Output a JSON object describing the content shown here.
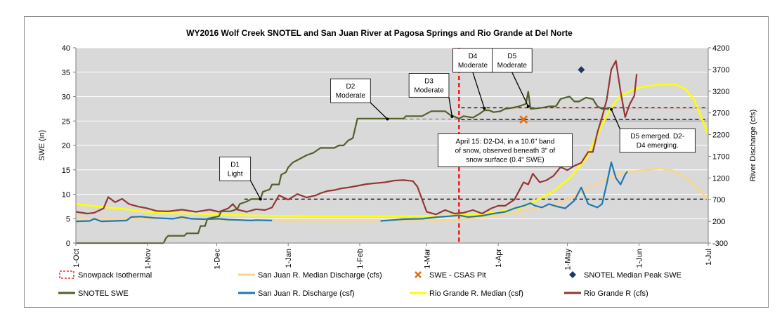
{
  "chart_data": {
    "type": "line",
    "title": "WY2016 Wolf Creek SNOTEL and San Juan River at Pagosa Springs and Rio Grande at Del Norte",
    "ylabel": "SWE (in)",
    "y2label": "River Discharge (cfs)",
    "ylim": [
      0,
      40
    ],
    "y2lim": [
      -300,
      4200
    ],
    "yticks": [
      "0",
      "5",
      "10",
      "15",
      "20",
      "25",
      "30",
      "35",
      "40"
    ],
    "y2ticks": [
      "-300",
      "200",
      "700",
      "1200",
      "1700",
      "2200",
      "2700",
      "3200",
      "3700",
      "4200"
    ],
    "xtick_labels": [
      "1-Oct",
      "1-Nov",
      "1-Dec",
      "1-Jan",
      "1-Feb",
      "1-Mar",
      "1-Apr",
      "1-May",
      "1-Jun",
      "1-Jul"
    ],
    "xtick_days": [
      0,
      31,
      61,
      92,
      123,
      152,
      183,
      213,
      244,
      274
    ],
    "grid": true,
    "colors": {
      "plot_bg": "#d9d9d9",
      "snotel": "#4f6228",
      "sj_median": "#fad68a",
      "sj_discharge": "#1f77b4",
      "rg_median": "#ffff00",
      "rg_discharge": "#943634",
      "isothermal": "#ff0000",
      "csas": "#e46c0a",
      "median_peak": "#1f3864"
    },
    "series": [
      {
        "name": "SNOTEL SWE",
        "axis": "left",
        "points": [
          [
            0,
            0
          ],
          [
            38,
            0
          ],
          [
            39,
            1
          ],
          [
            40,
            1.5
          ],
          [
            47,
            1.5
          ],
          [
            48,
            2
          ],
          [
            53,
            2
          ],
          [
            54,
            3.5
          ],
          [
            56,
            3.5
          ],
          [
            57,
            5
          ],
          [
            62,
            5.5
          ],
          [
            63,
            6.5
          ],
          [
            67,
            6.5
          ],
          [
            70,
            7
          ],
          [
            71,
            8
          ],
          [
            74,
            8.5
          ],
          [
            76,
            9
          ],
          [
            80,
            9
          ],
          [
            81,
            10.5
          ],
          [
            84,
            11
          ],
          [
            85,
            12
          ],
          [
            88,
            12
          ],
          [
            89,
            14
          ],
          [
            91,
            14.5
          ],
          [
            92,
            15.5
          ],
          [
            94,
            16.5
          ],
          [
            96,
            17
          ],
          [
            98,
            17.5
          ],
          [
            100,
            18
          ],
          [
            103,
            18.5
          ],
          [
            106,
            19.5
          ],
          [
            112,
            19.5
          ],
          [
            114,
            20
          ],
          [
            116,
            20
          ],
          [
            118,
            21
          ],
          [
            120,
            21.5
          ],
          [
            122,
            25.5
          ],
          [
            138,
            25.5
          ],
          [
            142,
            25.5
          ],
          [
            143,
            26
          ],
          [
            150,
            26
          ],
          [
            154,
            27
          ],
          [
            160,
            27
          ],
          [
            162,
            26.3
          ],
          [
            166,
            25.5
          ],
          [
            168,
            26
          ],
          [
            172,
            25.7
          ],
          [
            175,
            26.5
          ],
          [
            177,
            27.2
          ],
          [
            179,
            27.2
          ],
          [
            181,
            26.8
          ],
          [
            184,
            27
          ],
          [
            186,
            27.5
          ],
          [
            189,
            27.7
          ],
          [
            192,
            28
          ],
          [
            195,
            28.5
          ],
          [
            196,
            31
          ],
          [
            197,
            27.5
          ],
          [
            200,
            27.6
          ],
          [
            203,
            27.8
          ],
          [
            205,
            28
          ],
          [
            208,
            28
          ],
          [
            210,
            29.5
          ],
          [
            212,
            29.8
          ],
          [
            214,
            30
          ],
          [
            216,
            29
          ],
          [
            218,
            29
          ],
          [
            221,
            29.8
          ],
          [
            224,
            29.5
          ],
          [
            226,
            28
          ],
          [
            228,
            27.5
          ],
          [
            231,
            27.5
          ]
        ]
      },
      {
        "name": "San Juan R. Median Discharge (cfs)",
        "axis": "right",
        "points": [
          [
            0,
            280
          ],
          [
            30,
            270
          ],
          [
            60,
            240
          ],
          [
            90,
            200
          ],
          [
            122,
            200
          ],
          [
            152,
            210
          ],
          [
            166,
            240
          ],
          [
            183,
            330
          ],
          [
            195,
            450
          ],
          [
            205,
            560
          ],
          [
            213,
            700
          ],
          [
            220,
            900
          ],
          [
            227,
            1100
          ],
          [
            235,
            1300
          ],
          [
            241,
            1350
          ],
          [
            247,
            1380
          ],
          [
            253,
            1420
          ],
          [
            258,
            1380
          ],
          [
            263,
            1250
          ],
          [
            268,
            1050
          ],
          [
            274,
            700
          ]
        ]
      },
      {
        "name": "San Juan R. Discharge (csf)",
        "axis": "right",
        "points": [
          [
            0,
            200
          ],
          [
            6,
            210
          ],
          [
            8,
            260
          ],
          [
            11,
            200
          ],
          [
            22,
            220
          ],
          [
            24,
            300
          ],
          [
            28,
            310
          ],
          [
            34,
            280
          ],
          [
            42,
            260
          ],
          [
            46,
            300
          ],
          [
            50,
            260
          ],
          [
            56,
            250
          ],
          [
            62,
            260
          ],
          [
            66,
            240
          ],
          [
            72,
            230
          ],
          [
            76,
            220
          ],
          [
            78,
            230
          ],
          [
            85,
            220
          ]
        ]
      },
      {
        "name": "San Juan R. Discharge (csf) b",
        "axis": "right",
        "points": [
          [
            132,
            210
          ],
          [
            137,
            230
          ],
          [
            142,
            250
          ],
          [
            150,
            260
          ],
          [
            157,
            300
          ],
          [
            162,
            320
          ],
          [
            166,
            340
          ],
          [
            170,
            300
          ],
          [
            176,
            330
          ],
          [
            181,
            380
          ],
          [
            186,
            420
          ],
          [
            190,
            500
          ],
          [
            194,
            560
          ],
          [
            197,
            620
          ],
          [
            199,
            560
          ],
          [
            202,
            520
          ],
          [
            205,
            600
          ],
          [
            208,
            550
          ],
          [
            212,
            500
          ],
          [
            216,
            680
          ],
          [
            219,
            980
          ],
          [
            222,
            600
          ],
          [
            226,
            520
          ],
          [
            228,
            600
          ],
          [
            230,
            1060
          ],
          [
            232,
            1560
          ],
          [
            234,
            1200
          ],
          [
            236,
            1050
          ],
          [
            238,
            1280
          ],
          [
            239,
            1350
          ]
        ]
      },
      {
        "name": "Rio Grande R. Median (csf)",
        "axis": "right",
        "points": [
          [
            0,
            600
          ],
          [
            10,
            540
          ],
          [
            20,
            490
          ],
          [
            30,
            420
          ],
          [
            40,
            390
          ],
          [
            50,
            380
          ],
          [
            60,
            360
          ],
          [
            80,
            330
          ],
          [
            100,
            320
          ],
          [
            120,
            320
          ],
          [
            140,
            320
          ],
          [
            160,
            330
          ],
          [
            172,
            350
          ],
          [
            183,
            420
          ],
          [
            193,
            520
          ],
          [
            200,
            700
          ],
          [
            207,
            900
          ],
          [
            214,
            1200
          ],
          [
            221,
            1650
          ],
          [
            226,
            2200
          ],
          [
            231,
            2750
          ],
          [
            236,
            3100
          ],
          [
            242,
            3250
          ],
          [
            248,
            3320
          ],
          [
            254,
            3350
          ],
          [
            260,
            3350
          ],
          [
            264,
            3250
          ],
          [
            268,
            3000
          ],
          [
            274,
            2200
          ]
        ]
      },
      {
        "name": "Rio Grande R (cfs)",
        "axis": "right",
        "points": [
          [
            0,
            420
          ],
          [
            5,
            380
          ],
          [
            8,
            400
          ],
          [
            12,
            500
          ],
          [
            14,
            760
          ],
          [
            17,
            640
          ],
          [
            20,
            720
          ],
          [
            23,
            600
          ],
          [
            27,
            540
          ],
          [
            31,
            500
          ],
          [
            35,
            440
          ],
          [
            40,
            430
          ],
          [
            46,
            470
          ],
          [
            52,
            420
          ],
          [
            58,
            470
          ],
          [
            62,
            420
          ],
          [
            66,
            500
          ],
          [
            68,
            600
          ],
          [
            70,
            470
          ],
          [
            74,
            420
          ],
          [
            78,
            480
          ],
          [
            82,
            460
          ],
          [
            85,
            520
          ],
          [
            88,
            800
          ],
          [
            92,
            700
          ],
          [
            96,
            830
          ],
          [
            100,
            750
          ],
          [
            104,
            800
          ],
          [
            106,
            850
          ],
          [
            109,
            900
          ],
          [
            112,
            920
          ],
          [
            115,
            960
          ],
          [
            118,
            980
          ],
          [
            122,
            1020
          ],
          [
            126,
            1060
          ],
          [
            130,
            1080
          ],
          [
            134,
            1100
          ],
          [
            138,
            1140
          ],
          [
            142,
            1150
          ],
          [
            146,
            1130
          ],
          [
            148,
            1000
          ],
          [
            152,
            420
          ],
          [
            156,
            360
          ],
          [
            160,
            460
          ],
          [
            164,
            380
          ],
          [
            168,
            400
          ],
          [
            172,
            460
          ],
          [
            176,
            380
          ],
          [
            180,
            500
          ],
          [
            183,
            560
          ],
          [
            186,
            560
          ],
          [
            190,
            700
          ],
          [
            194,
            1100
          ],
          [
            196,
            1050
          ],
          [
            198,
            1300
          ],
          [
            201,
            1100
          ],
          [
            204,
            1150
          ],
          [
            207,
            1250
          ],
          [
            210,
            1450
          ],
          [
            213,
            1380
          ],
          [
            216,
            1480
          ],
          [
            219,
            1550
          ],
          [
            222,
            1800
          ],
          [
            224,
            1800
          ],
          [
            226,
            2250
          ],
          [
            228,
            2600
          ],
          [
            230,
            3000
          ],
          [
            232,
            3700
          ],
          [
            234,
            3900
          ],
          [
            236,
            3200
          ],
          [
            238,
            2600
          ],
          [
            240,
            2900
          ],
          [
            242,
            3100
          ],
          [
            243,
            3600
          ]
        ]
      }
    ],
    "csas_pit": [
      {
        "day": 167,
        "swe": 21.3
      },
      {
        "day": 194,
        "swe": 25.3
      }
    ],
    "median_peak_swe": {
      "day": 219,
      "swe": 35.5
    },
    "isothermal_day": 166,
    "hlines": [
      {
        "value": 27.7,
        "style": "dashed",
        "color": "#000000",
        "from": 167
      },
      {
        "value": 27.6,
        "style": "dashed",
        "color": "#e6b8b7",
        "from": 185
      },
      {
        "value": 25.3,
        "style": "dashed",
        "color": "#000000",
        "from": 167
      },
      {
        "value": 25.4,
        "style": "dashed",
        "color": "#808080",
        "from": 142
      },
      {
        "value": 25.0,
        "style": "solid",
        "color": "#9e9e9e",
        "from": 167
      },
      {
        "value": 9.0,
        "style": "dashed",
        "color": "#000000",
        "from": 73
      }
    ],
    "annotations": [
      {
        "lines": [
          "D1",
          "Light"
        ],
        "day": 69,
        "swe": 15.2,
        "target_day": 80,
        "target_swe": 9.0
      },
      {
        "lines": [
          "D2",
          "Moderate"
        ],
        "day": 119,
        "swe": 31.2,
        "target_day": 135,
        "target_swe": 25.4
      },
      {
        "lines": [
          "D3",
          "Moderate"
        ],
        "day": 153,
        "swe": 32.3,
        "target_day": 163,
        "target_swe": 25.9
      },
      {
        "lines": [
          "D4",
          "Moderate"
        ],
        "day": 172,
        "swe": 37.4,
        "target_day": 177,
        "target_swe": 27.6
      },
      {
        "lines": [
          "D5",
          "Moderate"
        ],
        "day": 189,
        "swe": 37.4,
        "target_day": 196,
        "target_swe": 28.0
      },
      {
        "lines": [
          "April 15: D2-D4, in a 10.6\" band",
          "of snow, observed beneath 3\" of",
          "snow surface (0.4\" SWE)"
        ],
        "day": 186,
        "swe": 19.0
      },
      {
        "lines": [
          "D5  emerged.  D2-",
          "D4 emerging."
        ],
        "day": 252,
        "swe": 21.0,
        "target_day": 232,
        "target_swe": 27.4
      }
    ],
    "legend": [
      {
        "label": "Snowpack Isothermal",
        "type": "dashed-box",
        "color": "#ff0000"
      },
      {
        "label": "San Juan R. Median Discharge (cfs)",
        "type": "line",
        "color": "#fad68a"
      },
      {
        "label": "SWE - CSAS Pit",
        "type": "x",
        "color": "#e46c0a"
      },
      {
        "label": "SNOTEL Median Peak SWE",
        "type": "diamond",
        "color": "#1f3864"
      },
      {
        "label": "SNOTEL SWE",
        "type": "line",
        "color": "#4f6228"
      },
      {
        "label": "San Juan R. Discharge (csf)",
        "type": "line",
        "color": "#1f77b4"
      },
      {
        "label": "Rio Grande R. Median (csf)",
        "type": "line",
        "color": "#ffff00"
      },
      {
        "label": "Rio Grande R (cfs)",
        "type": "line",
        "color": "#943634"
      }
    ]
  }
}
